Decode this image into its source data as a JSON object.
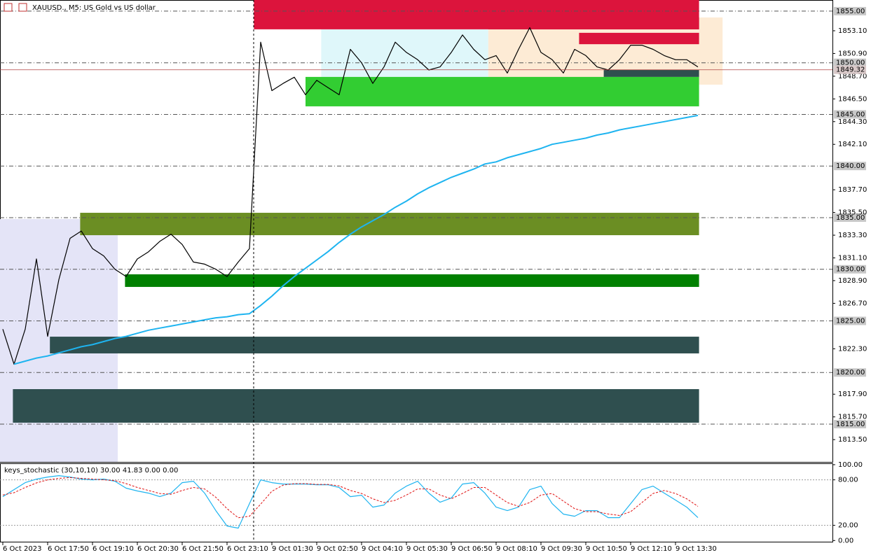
{
  "header": {
    "title": "XAUUSD., M5: US Gold vs US dollar"
  },
  "chart_data": [
    {
      "type": "line",
      "categories": [
        "6 Oct 2023",
        null,
        null,
        null,
        "6 Oct 17:50",
        null,
        null,
        null,
        "6 Oct 19:10",
        null,
        null,
        null,
        "6 Oct 20:30",
        null,
        null,
        null,
        "6 Oct 21:50",
        null,
        null,
        null,
        "6 Oct 23:10",
        null,
        null,
        null,
        "9 Oct 01:30",
        null,
        null,
        null,
        "9 Oct 02:50",
        null,
        null,
        null,
        "9 Oct 04:10",
        null,
        null,
        null,
        "9 Oct 05:30",
        null,
        null,
        null,
        "9 Oct 06:50",
        null,
        null,
        null,
        "9 Oct 08:10",
        null,
        null,
        null,
        "9 Oct 09:30",
        null,
        null,
        null,
        "9 Oct 10:50",
        null,
        null,
        null,
        "9 Oct 12:10",
        null,
        null,
        null,
        "9 Oct 13:30",
        null,
        null
      ],
      "series": [
        {
          "color": "#000000",
          "width": 1.2,
          "values": [
            1824.2,
            1820.8,
            1824.2,
            1831.0,
            1823.5,
            1829.0,
            1833.0,
            1833.7,
            1832.0,
            1831.3,
            1830.0,
            1829.3,
            1831.0,
            1831.7,
            1832.7,
            1833.4,
            1832.4,
            1830.7,
            1830.5,
            1830.0,
            1829.3,
            1830.7,
            1832.0,
            1852.0,
            1847.3,
            1848.0,
            1848.6,
            1846.9,
            1848.3,
            1847.6,
            1846.9,
            1851.3,
            1850.0,
            1848.0,
            1849.6,
            1852.0,
            1851.0,
            1850.3,
            1849.3,
            1849.6,
            1851.0,
            1852.7,
            1851.3,
            1850.3,
            1850.7,
            1849.0,
            1851.3,
            1853.4,
            1851.0,
            1850.3,
            1849.0,
            1851.3,
            1850.7,
            1849.6,
            1849.3,
            1850.3,
            1851.7,
            1851.7,
            1851.3,
            1850.7,
            1850.3,
            1850.3,
            1849.6
          ]
        },
        {
          "color": "#1eb4f0",
          "width": 2,
          "values": [
            null,
            1820.8,
            1821.1,
            1821.4,
            1821.6,
            1821.9,
            1822.2,
            1822.5,
            1822.7,
            1823.0,
            1823.3,
            1823.5,
            1823.8,
            1824.1,
            1824.3,
            1824.5,
            1824.7,
            1824.9,
            1825.1,
            1825.3,
            1825.4,
            1825.6,
            1825.7,
            1826.5,
            1827.4,
            1828.4,
            1829.3,
            1830.1,
            1830.9,
            1831.7,
            1832.6,
            1833.4,
            1834.1,
            1834.7,
            1835.3,
            1836.0,
            1836.6,
            1837.3,
            1837.9,
            1838.4,
            1838.9,
            1839.3,
            1839.7,
            1840.2,
            1840.4,
            1840.8,
            1841.1,
            1841.4,
            1841.7,
            1842.1,
            1842.3,
            1842.5,
            1842.7,
            1843.0,
            1843.2,
            1843.5,
            1843.7,
            1843.9,
            1844.1,
            1844.3,
            1844.5,
            1844.7,
            1844.9
          ]
        }
      ],
      "zones": [
        {
          "x": [
            -0.25,
            10.25
          ],
          "price": [
            1811.34,
            1834.86
          ],
          "color": "#e4e4f7"
        },
        {
          "x": [
            28.4,
            43.3
          ],
          "price": [
            1848.63,
            1853.24
          ],
          "color": "#dff7fa"
        },
        {
          "x": [
            43.3,
            64.2
          ],
          "price": [
            1847.88,
            1854.39
          ],
          "color": "#fdebd5"
        },
        {
          "x": [
            22.4,
            62.1
          ],
          "price": [
            1853.24,
            1856.08
          ],
          "color": "#dc143c"
        },
        {
          "x": [
            43.3,
            62.1
          ],
          "price": [
            1853.24,
            1854.39
          ],
          "color": "#dc143c"
        },
        {
          "x": [
            51.4,
            62.1
          ],
          "price": [
            1851.8,
            1852.9
          ],
          "color": "#dc143c"
        },
        {
          "x": [
            53.6,
            62.1
          ],
          "price": [
            1848.63,
            1849.3
          ],
          "color": "#2f4f4f"
        },
        {
          "x": [
            27.0,
            62.1
          ],
          "price": [
            1845.78,
            1848.63
          ],
          "color": "#32cd32"
        },
        {
          "x": [
            6.9,
            62.1
          ],
          "price": [
            1833.3,
            1835.47
          ],
          "color": "#6b8e23"
        },
        {
          "x": [
            10.9,
            62.1
          ],
          "price": [
            1828.29,
            1829.51
          ],
          "color": "#008000"
        },
        {
          "x": [
            4.2,
            62.1
          ],
          "price": [
            1821.85,
            1823.47
          ],
          "color": "#2f4f4f"
        },
        {
          "x": [
            0.9,
            62.1
          ],
          "price": [
            1815.14,
            1818.39
          ],
          "color": "#2f4f4f"
        }
      ],
      "ylim": [
        1811.34,
        1856.08
      ],
      "yticks": [
        {
          "value": 1853.1,
          "label": "1853.10"
        },
        {
          "value": 1850.9,
          "label": "1850.90"
        },
        {
          "value": 1848.7,
          "label": "1848.70"
        },
        {
          "value": 1846.5,
          "label": "1846.50"
        },
        {
          "value": 1844.3,
          "label": "1844.30"
        },
        {
          "value": 1842.1,
          "label": "1842.10"
        },
        {
          "value": 1837.7,
          "label": "1837.70"
        },
        {
          "value": 1835.5,
          "label": "1835.50"
        },
        {
          "value": 1833.3,
          "label": "1833.30"
        },
        {
          "value": 1831.1,
          "label": "1831.10"
        },
        {
          "value": 1828.9,
          "label": "1828.90"
        },
        {
          "value": 1826.7,
          "label": "1826.70"
        },
        {
          "value": 1822.3,
          "label": "1822.30"
        },
        {
          "value": 1817.9,
          "label": "1817.90"
        },
        {
          "value": 1815.7,
          "label": "1815.70"
        },
        {
          "value": 1813.5,
          "label": "1813.50"
        }
      ],
      "levels": [
        {
          "value": 1855,
          "label": "1855.00"
        },
        {
          "value": 1850,
          "label": "1850.00"
        },
        {
          "value": 1845,
          "label": "1845.00"
        },
        {
          "value": 1840,
          "label": "1840.00"
        },
        {
          "value": 1835,
          "label": "1835.00"
        },
        {
          "value": 1830,
          "label": "1830.00"
        },
        {
          "value": 1825,
          "label": "1825.00"
        },
        {
          "value": 1820,
          "label": "1820.00"
        },
        {
          "value": 1815,
          "label": "1815.00"
        }
      ],
      "last_price": {
        "value": 1849.32,
        "label": "1849.32"
      }
    },
    {
      "type": "line",
      "title": "keys_stochastic (30,10,10) 30.00 41.83 0.00 0.00",
      "series": [
        {
          "color": "#1eb4f0",
          "width": 1.2,
          "values": [
            57.9,
            67.1,
            76.3,
            80.9,
            83.7,
            85.6,
            83.7,
            81.0,
            80.0,
            81.0,
            78.2,
            69.0,
            65.3,
            62.5,
            57.9,
            62.5,
            76.3,
            78.2,
            62.5,
            39.4,
            19.1,
            16.3,
            48.6,
            80.0,
            76.3,
            74.5,
            74.5,
            74.5,
            73.6,
            73.6,
            69.9,
            57.9,
            59.7,
            44.0,
            46.8,
            62.5,
            71.7,
            78.2,
            62.5,
            50.5,
            56.0,
            74.5,
            76.3,
            62.5,
            44.0,
            39.4,
            44.0,
            67.1,
            71.7,
            48.6,
            34.8,
            32.0,
            39.4,
            39.4,
            30.2,
            30.2,
            48.6,
            67.1,
            71.7,
            62.5,
            53.3,
            44.0,
            30.2
          ]
        },
        {
          "color": "#e01010",
          "width": 1,
          "dash": true,
          "values": [
            60,
            63,
            70,
            76,
            80,
            82,
            83,
            82,
            81,
            80,
            79,
            75,
            70,
            66,
            62,
            61,
            66,
            70,
            68,
            57,
            42,
            30,
            32,
            48,
            65,
            73,
            75,
            75,
            74,
            74,
            72,
            66,
            62,
            55,
            50,
            53,
            60,
            68,
            68,
            60,
            55,
            62,
            70,
            70,
            60,
            50,
            45,
            50,
            60,
            62,
            52,
            42,
            38,
            38,
            35,
            33,
            38,
            50,
            62,
            66,
            62,
            55,
            45
          ]
        }
      ],
      "ylim": [
        -2.5,
        101.8
      ],
      "yticks": [
        {
          "value": 100,
          "label": "100.00"
        },
        {
          "value": 80,
          "label": "80.00"
        },
        {
          "value": 20,
          "label": "20.00"
        },
        {
          "value": 0,
          "label": "0.00"
        }
      ],
      "levels": [
        80,
        20
      ]
    }
  ]
}
